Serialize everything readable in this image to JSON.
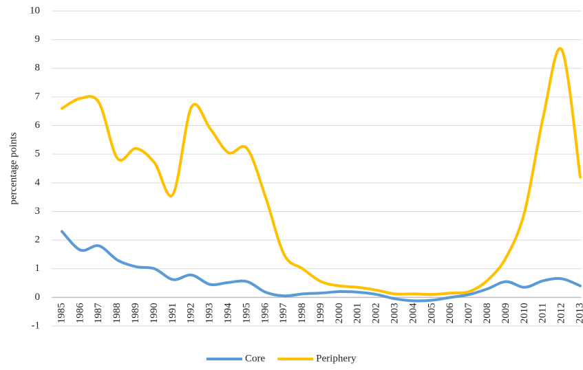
{
  "chart_data": {
    "type": "line",
    "y_label": "percentage points",
    "categories": [
      "1985",
      "1986",
      "1987",
      "1988",
      "1989",
      "1990",
      "1991",
      "1992",
      "1993",
      "1994",
      "1995",
      "1996",
      "1997",
      "1998",
      "1999",
      "2000",
      "2001",
      "2002",
      "2003",
      "2004",
      "2005",
      "2006",
      "2007",
      "2008",
      "2009",
      "2010",
      "2011",
      "2012",
      "2013"
    ],
    "series": [
      {
        "name": "Core",
        "color": "#5b9bd5",
        "values": [
          2.3,
          1.65,
          1.8,
          1.3,
          1.07,
          1.0,
          0.62,
          0.78,
          0.45,
          0.52,
          0.55,
          0.18,
          0.05,
          0.12,
          0.15,
          0.2,
          0.18,
          0.1,
          -0.05,
          -0.12,
          -0.1,
          0.0,
          0.1,
          0.3,
          0.55,
          0.35,
          0.58,
          0.65,
          0.4
        ]
      },
      {
        "name": "Periphery",
        "color": "#ffc000",
        "values": [
          6.6,
          6.95,
          6.8,
          4.85,
          5.2,
          4.7,
          3.6,
          6.65,
          5.9,
          5.05,
          5.2,
          3.5,
          1.5,
          1.0,
          0.55,
          0.4,
          0.35,
          0.25,
          0.12,
          0.12,
          0.1,
          0.15,
          0.2,
          0.6,
          1.4,
          3.0,
          6.3,
          8.65,
          4.2
        ]
      }
    ],
    "ylim": [
      -1,
      10
    ],
    "yticks": [
      -1,
      0,
      1,
      2,
      3,
      4,
      5,
      6,
      7,
      8,
      9,
      10
    ],
    "grid": true,
    "smooth": true,
    "legend": "bottom"
  }
}
